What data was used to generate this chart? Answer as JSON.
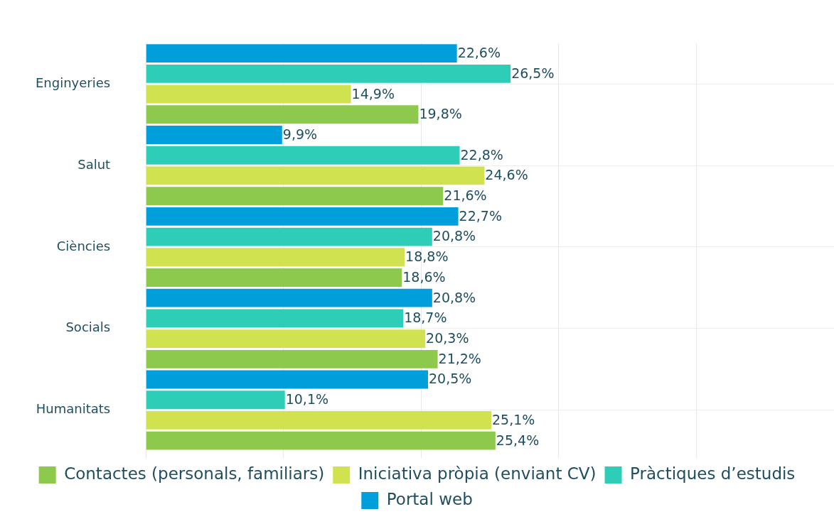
{
  "chart_data": {
    "type": "bar",
    "orientation": "horizontal",
    "categories": [
      "Enginyeries",
      "Salut",
      "Ciències",
      "Socials",
      "Humanitats"
    ],
    "series": [
      {
        "name": "Portal web",
        "color": "#009fdb",
        "values": [
          22.6,
          9.9,
          22.7,
          20.8,
          20.5
        ],
        "value_labels": [
          "22,6%",
          "9,9%",
          "22,7%",
          "20,8%",
          "20,5%"
        ]
      },
      {
        "name": "Pràctiques d’estudis",
        "color": "#2ecdb8",
        "values": [
          26.5,
          22.8,
          20.8,
          18.7,
          10.1
        ],
        "value_labels": [
          "26,5%",
          "22,8%",
          "20,8%",
          "18,7%",
          "10,1%"
        ]
      },
      {
        "name": "Iniciativa pròpia (enviant CV)",
        "color": "#d0e24f",
        "values": [
          14.9,
          24.6,
          18.8,
          20.3,
          25.1
        ],
        "value_labels": [
          "14,9%",
          "24,6%",
          "18,8%",
          "20,3%",
          "25,1%"
        ]
      },
      {
        "name": "Contactes (personals, familiars)",
        "color": "#8dc94d",
        "values": [
          19.8,
          21.6,
          18.6,
          21.2,
          25.4
        ],
        "value_labels": [
          "19,8%",
          "21,6%",
          "18,6%",
          "21,2%",
          "25,4%"
        ]
      }
    ],
    "xlim": [
      0,
      50
    ],
    "xticks": [
      {
        "value": 0,
        "label": null
      },
      {
        "value": 10,
        "label": null
      },
      {
        "value": 20,
        "label": null
      },
      {
        "value": 30,
        "label": null
      },
      {
        "value": 40,
        "label": null
      },
      {
        "value": 50,
        "label": null
      }
    ],
    "tick_labels": "y",
    "grid": true,
    "legend": "bottom"
  }
}
